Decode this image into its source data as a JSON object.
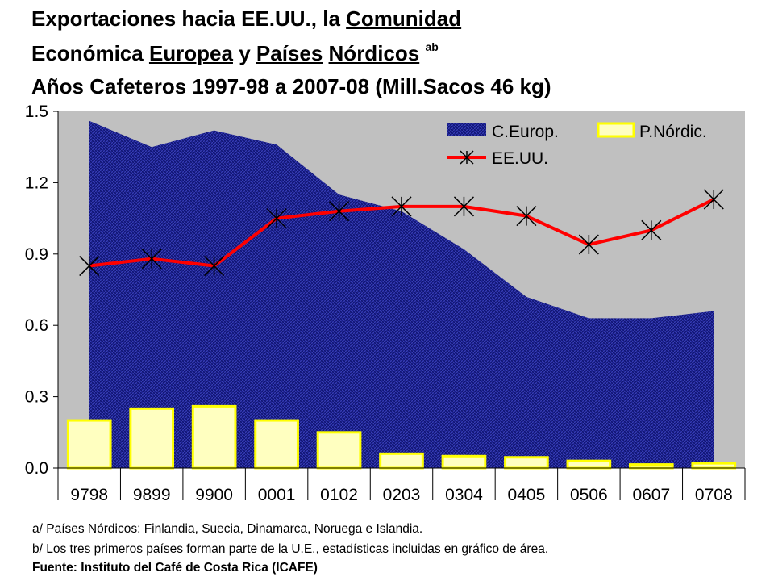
{
  "title": {
    "line1_a": "Exportaciones hacia EE.UU., la ",
    "line1_b": "Comunidad",
    "line2_a": "Económica ",
    "line2_b": "Europea",
    "line2_c": " y ",
    "line2_d": "Países",
    "line2_e": " ",
    "line2_f": "Nórdicos",
    "line2_sup": "ab",
    "line3": "Años Cafeteros 1997-98 a 2007-08 (Mill.Sacos 46 kg)"
  },
  "notes": {
    "a": "a/ Países Nórdicos: Finlandia, Suecia, Dinamarca, Noruega e Islandia.",
    "b": "b/ Los tres primeros países forman parte de la U.E., estadísticas incluidas en gráfico de área.",
    "source": "Fuente: Instituto del Café de Costa Rica (ICAFE)"
  },
  "chart_data": {
    "type": "bar",
    "categories": [
      "9798",
      "9899",
      "9900",
      "0001",
      "0102",
      "0203",
      "0304",
      "0405",
      "0506",
      "0607",
      "0708"
    ],
    "ylim": [
      0,
      1.5
    ],
    "yticks": [
      "0.0",
      "0.3",
      "0.6",
      "0.9",
      "1.2",
      "1.5"
    ],
    "legend_position": "top-right",
    "series": [
      {
        "name": "C.Europ.",
        "kind": "area",
        "color": "#1a1f8c",
        "values": [
          1.46,
          1.35,
          1.42,
          1.36,
          1.15,
          1.08,
          0.92,
          0.72,
          0.63,
          0.63,
          0.66
        ]
      },
      {
        "name": "P.Nórdic.",
        "kind": "bar",
        "color": "#ffffc0",
        "border": "#ffff00",
        "values": [
          0.2,
          0.25,
          0.26,
          0.2,
          0.15,
          0.06,
          0.05,
          0.045,
          0.03,
          0.015,
          0.02
        ]
      },
      {
        "name": "EE.UU.",
        "kind": "line",
        "color": "#ff0000",
        "values": [
          0.85,
          0.88,
          0.85,
          1.05,
          1.08,
          1.1,
          1.1,
          1.06,
          0.94,
          1.0,
          1.13
        ]
      }
    ],
    "plot_background": "#c0c0c0"
  }
}
